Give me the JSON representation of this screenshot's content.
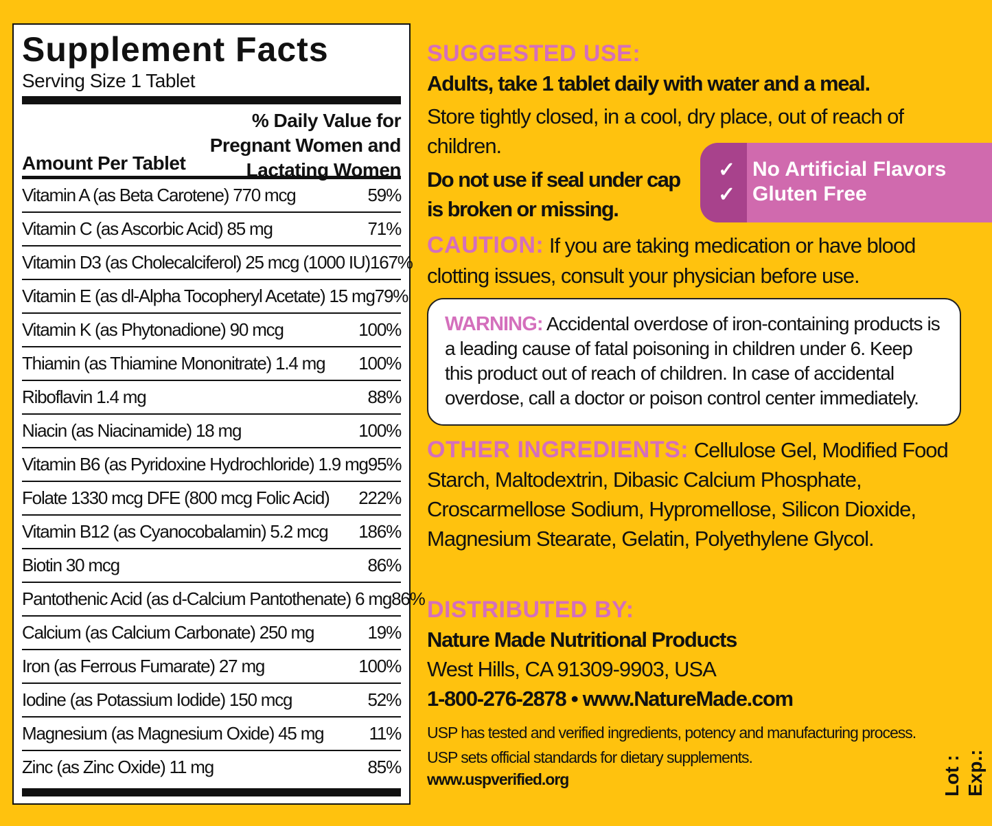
{
  "facts": {
    "title": "Supplement Facts",
    "serving": "Serving Size 1 Tablet",
    "dv_header": [
      "% Daily Value for",
      "Pregnant Women and",
      "Lactating Women"
    ],
    "amount_header": "Amount Per Tablet",
    "rows": [
      {
        "name": "Vitamin A (as Beta Carotene) 770 mcg",
        "dv": "59%"
      },
      {
        "name": "Vitamin C (as Ascorbic Acid) 85 mg",
        "dv": "71%"
      },
      {
        "name": "Vitamin D3 (as Cholecalciferol) 25 mcg (1000 IU)",
        "dv": "167%"
      },
      {
        "name": "Vitamin E (as dl-Alpha Tocopheryl Acetate) 15 mg",
        "dv": "79%"
      },
      {
        "name": "Vitamin K (as Phytonadione) 90 mcg",
        "dv": "100%"
      },
      {
        "name": "Thiamin (as Thiamine Mononitrate) 1.4 mg",
        "dv": "100%"
      },
      {
        "name": "Riboflavin 1.4 mg",
        "dv": "88%"
      },
      {
        "name": "Niacin (as Niacinamide) 18 mg",
        "dv": "100%"
      },
      {
        "name": "Vitamin B6 (as Pyridoxine Hydrochloride) 1.9 mg",
        "dv": "95%"
      },
      {
        "name": "Folate 1330 mcg DFE (800 mcg Folic Acid)",
        "dv": "222%"
      },
      {
        "name": "Vitamin B12 (as Cyanocobalamin) 5.2 mcg",
        "dv": "186%"
      },
      {
        "name": "Biotin 30 mcg",
        "dv": "86%"
      },
      {
        "name": "Pantothenic Acid (as d-Calcium Pantothenate) 6 mg",
        "dv": "86%"
      },
      {
        "name": "Calcium (as Calcium Carbonate) 250 mg",
        "dv": "19%"
      },
      {
        "name": "Iron (as Ferrous Fumarate) 27 mg",
        "dv": "100%"
      },
      {
        "name": "Iodine (as Potassium Iodide) 150 mcg",
        "dv": "52%"
      },
      {
        "name": "Magnesium (as Magnesium Oxide) 45 mg",
        "dv": "11%"
      },
      {
        "name": "Zinc (as Zinc Oxide) 11 mg",
        "dv": "85%"
      }
    ]
  },
  "suggested": {
    "heading": "SUGGESTED USE:",
    "line1": "Adults, take 1 tablet daily with water and a meal.",
    "store": "Store tightly closed, in a cool, dry place, out of reach of children.",
    "seal": "Do not use if seal under cap is broken or missing."
  },
  "badge": {
    "items": [
      "No Artificial Flavors",
      "Gluten Free"
    ],
    "check": "✓"
  },
  "caution": {
    "heading": "CAUTION:",
    "text": "If you are taking medication or have blood clotting issues, consult your physician before use."
  },
  "warning": {
    "heading": "WARNING:",
    "text": "Accidental overdose of iron-containing products is a leading cause of fatal poisoning in children under 6. Keep this product out of reach of children. In case of accidental overdose, call a doctor or poison control center immediately."
  },
  "ingredients": {
    "heading": "OTHER INGREDIENTS:",
    "text": "Cellulose Gel, Modified Food Starch, Maltodextrin, Dibasic Calcium Phosphate, Croscarmellose Sodium, Hypromellose, Silicon Dioxide, Magnesium Stearate, Gelatin, Polyethylene Glycol."
  },
  "distributed": {
    "heading": "DISTRIBUTED BY:",
    "company": "Nature Made Nutritional Products",
    "address": "West Hills, CA 91309-9903, USA",
    "contact": "1-800-276-2878 • www.NatureMade.com"
  },
  "usp": {
    "line1": "USP has tested and verified ingredients, potency and manufacturing process.",
    "line2": "USP sets official standards for dietary supplements.",
    "url": "www.uspverified.org"
  },
  "lot": "Lot :",
  "exp": "Exp.:",
  "colors": {
    "background": "#FFC20E",
    "heading_pink": "#D46FBC",
    "badge_dark": "#A8428C",
    "badge_light": "#D06AAE"
  }
}
